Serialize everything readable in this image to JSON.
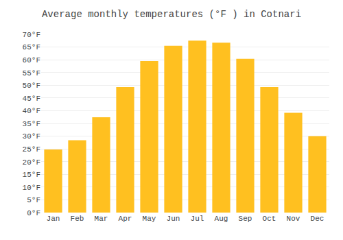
{
  "chart_data": {
    "type": "bar",
    "title": "Average monthly temperatures (°F ) in Cotnari",
    "categories": [
      "Jan",
      "Feb",
      "Mar",
      "Apr",
      "May",
      "Jun",
      "Jul",
      "Aug",
      "Sep",
      "Oct",
      "Nov",
      "Dec"
    ],
    "values": [
      24.8,
      28.4,
      37.4,
      49.3,
      59.5,
      65.5,
      67.5,
      66.7,
      60.4,
      49.3,
      39.2,
      30.0
    ],
    "color": "#FFC020",
    "ylim": [
      0,
      70
    ],
    "yticks": [
      {
        "value": 0,
        "label": "0°F"
      },
      {
        "value": 5,
        "label": "5°F"
      },
      {
        "value": 10,
        "label": "10°F"
      },
      {
        "value": 15,
        "label": "15°F"
      },
      {
        "value": 20,
        "label": "20°F"
      },
      {
        "value": 25,
        "label": "25°F"
      },
      {
        "value": 30,
        "label": "30°F"
      },
      {
        "value": 35,
        "label": "35°F"
      },
      {
        "value": 40,
        "label": "40°F"
      },
      {
        "value": 45,
        "label": "45°F"
      },
      {
        "value": 50,
        "label": "50°F"
      },
      {
        "value": 55,
        "label": "55°F"
      },
      {
        "value": 60,
        "label": "60°F"
      },
      {
        "value": 65,
        "label": "65°F"
      },
      {
        "value": 70,
        "label": "70°F"
      }
    ],
    "grid": true
  }
}
